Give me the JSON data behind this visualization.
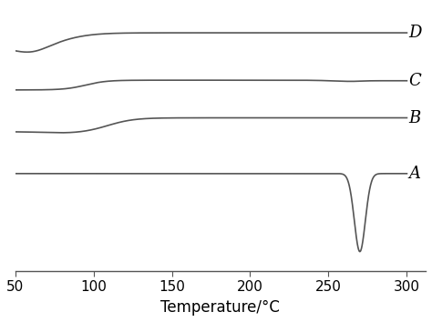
{
  "x_min": 50,
  "x_max": 300,
  "xlabel": "Temperature/°C",
  "xlabel_fontsize": 12,
  "tick_fontsize": 11,
  "line_color": "#555555",
  "line_width": 1.2,
  "label_fontsize": 13,
  "labels": [
    "A",
    "B",
    "C",
    "D"
  ],
  "background_color": "#ffffff",
  "offsets": [
    0.0,
    1.5,
    3.0,
    4.5
  ],
  "ylim": [
    -3.5,
    6.0
  ],
  "xlim": [
    50,
    312
  ]
}
